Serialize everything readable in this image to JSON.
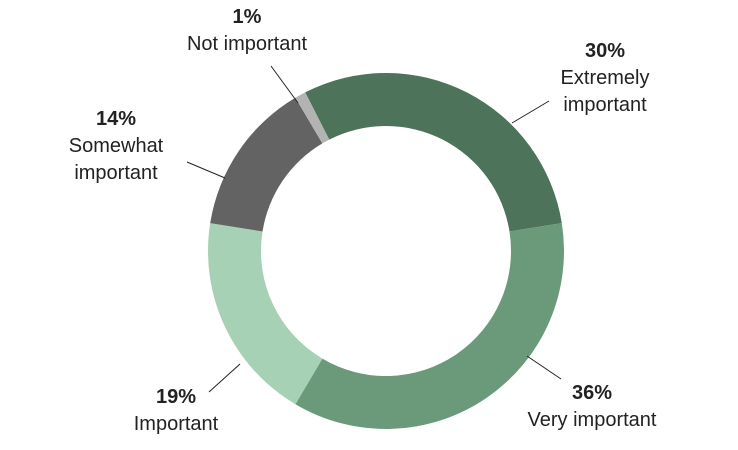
{
  "chart_data": {
    "type": "donut",
    "categories": [
      "Extremely important",
      "Very important",
      "Important",
      "Somewhat important",
      "Not important"
    ],
    "values": [
      30,
      36,
      19,
      14,
      1
    ],
    "value_labels": [
      "30%",
      "36%",
      "19%",
      "14%",
      "1%"
    ],
    "colors": [
      "#4e735b",
      "#6b9a7b",
      "#a7d1b4",
      "#636363",
      "#b3b3b3"
    ]
  }
}
